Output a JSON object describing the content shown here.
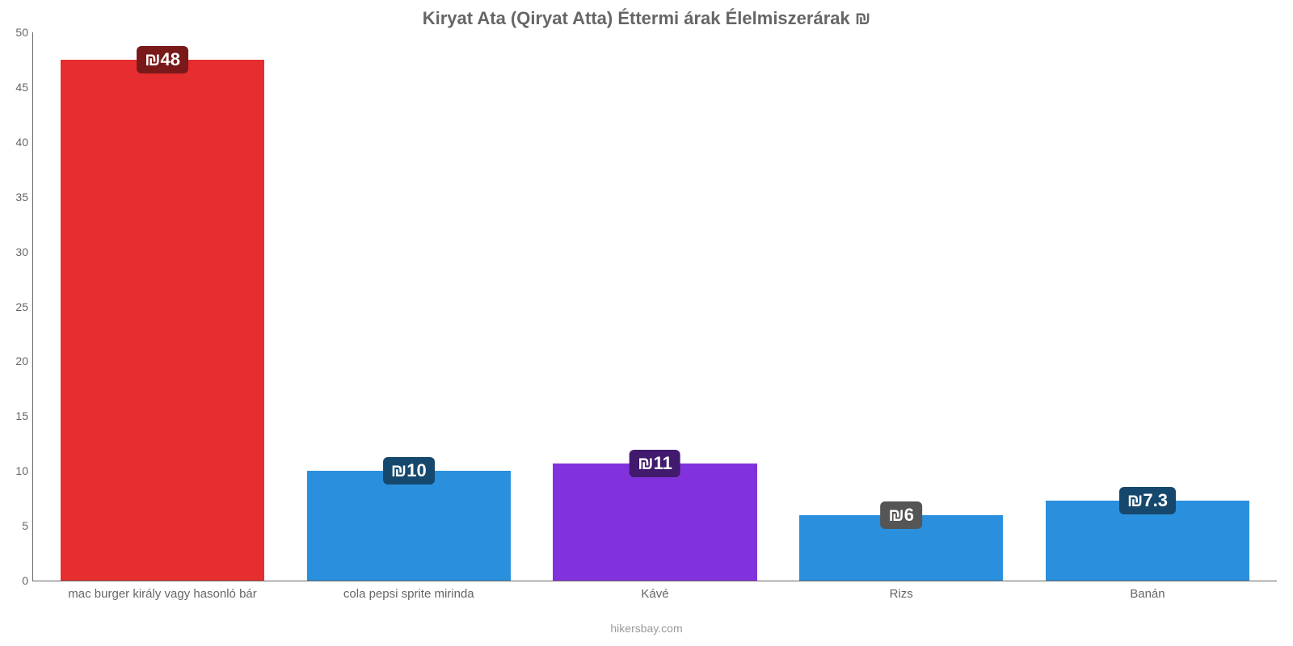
{
  "chart": {
    "type": "bar",
    "title": "Kiryat Ata (Qiryat Atta) Éttermi árak Élelmiszerárak ₪",
    "title_fontsize": 22,
    "title_color": "#666666",
    "background_color": "#ffffff",
    "axis_color": "#666666",
    "tick_fontsize": 14,
    "xlabel_fontsize": 15,
    "value_badge_fontsize": 22,
    "attribution": "hikersbay.com",
    "attribution_color": "#999999",
    "ylim": [
      0,
      50
    ],
    "ytick_step": 5,
    "yticks": [
      0,
      5,
      10,
      15,
      20,
      25,
      30,
      35,
      40,
      45,
      50
    ],
    "bar_width_pct": 16.4,
    "bar_gap_pct": 3.4,
    "bars": [
      {
        "category": "mac burger király vagy hasonló bár",
        "value": 47.5,
        "value_label": "₪48",
        "bar_color": "#e62d2f",
        "badge_color": "#7a1919",
        "badge_text_color": "#ffffff"
      },
      {
        "category": "cola pepsi sprite mirinda",
        "value": 10,
        "value_label": "₪10",
        "bar_color": "#2a8fdc",
        "badge_color": "#16486e",
        "badge_text_color": "#ffffff"
      },
      {
        "category": "Kávé",
        "value": 10.7,
        "value_label": "₪11",
        "bar_color": "#8232dc",
        "badge_color": "#411a6e",
        "badge_text_color": "#ffffff"
      },
      {
        "category": "Rizs",
        "value": 6,
        "value_label": "₪6",
        "bar_color": "#2a8fdc",
        "badge_color": "#555555",
        "badge_text_color": "#ffffff"
      },
      {
        "category": "Banán",
        "value": 7.3,
        "value_label": "₪7.3",
        "bar_color": "#2a8fdc",
        "badge_color": "#16486e",
        "badge_text_color": "#ffffff"
      }
    ]
  }
}
